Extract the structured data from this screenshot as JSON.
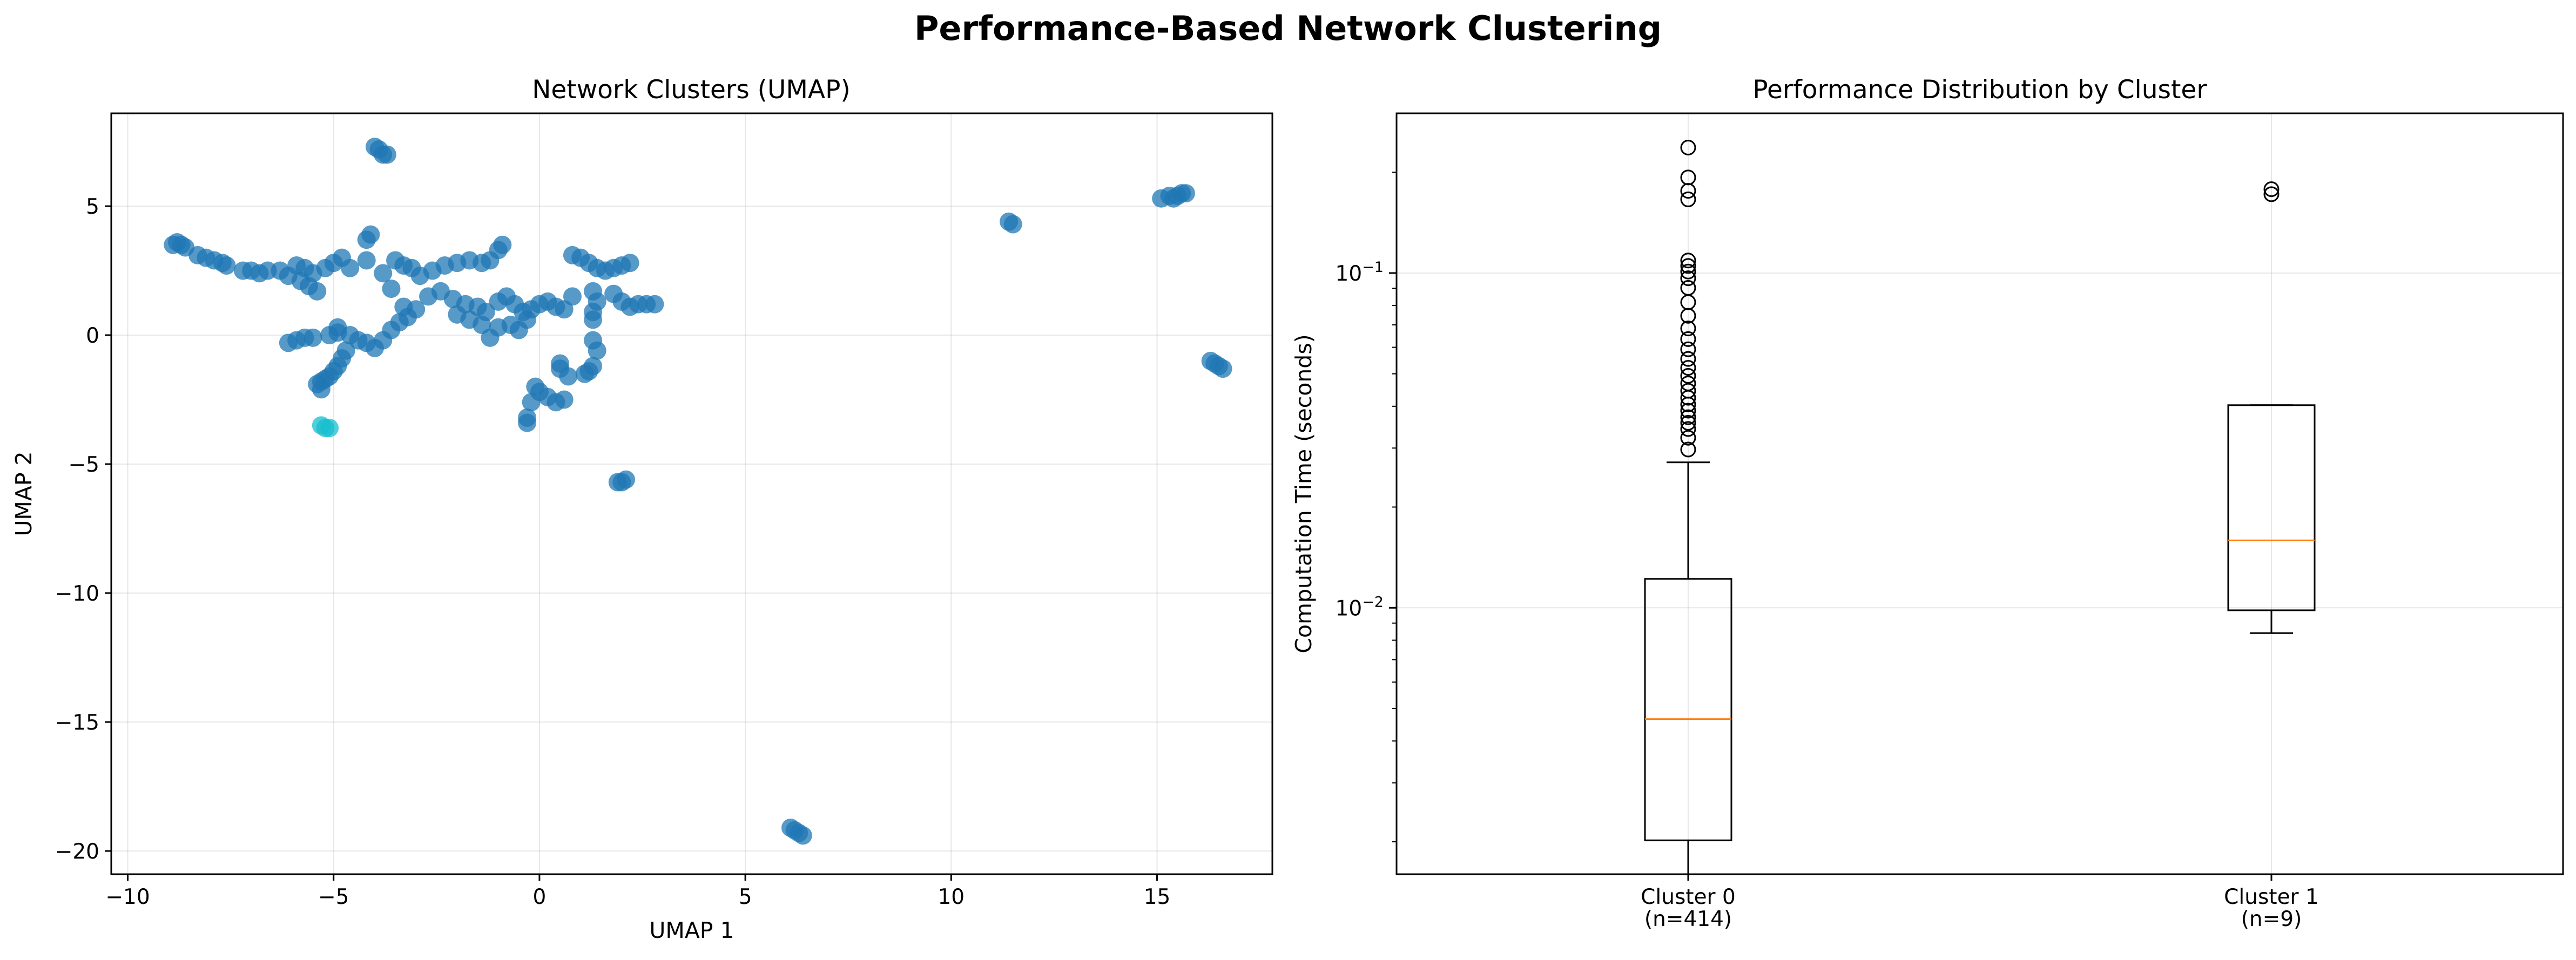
{
  "suptitle": "Performance-Based Network Clustering",
  "chart_data": [
    {
      "type": "scatter",
      "title": "Network Clusters (UMAP)",
      "xlabel": "UMAP 1",
      "ylabel": "UMAP 2",
      "xlim": [
        -10.4,
        17.8
      ],
      "ylim": [
        -20.9,
        8.6
      ],
      "xticks": [
        -10,
        -5,
        0,
        5,
        10,
        15
      ],
      "yticks": [
        -20,
        -15,
        -10,
        -5,
        0,
        5
      ],
      "grid": true,
      "colors": {
        "cluster_0": "#1f77b4",
        "cluster_1": "#17becf"
      },
      "series": [
        {
          "points": [
            [
              -8.9,
              3.5
            ],
            [
              -8.8,
              3.6
            ],
            [
              -8.7,
              3.5
            ],
            [
              -8.6,
              3.4
            ],
            [
              -8.3,
              3.1
            ],
            [
              -8.1,
              3.0
            ],
            [
              -7.9,
              2.9
            ],
            [
              -7.7,
              2.8
            ],
            [
              -7.6,
              2.7
            ],
            [
              -7.2,
              2.5
            ],
            [
              -7.0,
              2.5
            ],
            [
              -6.8,
              2.4
            ],
            [
              -6.6,
              2.5
            ],
            [
              -6.3,
              2.5
            ],
            [
              -6.1,
              2.3
            ],
            [
              -5.9,
              2.7
            ],
            [
              -5.7,
              2.6
            ],
            [
              -5.5,
              2.4
            ],
            [
              -5.8,
              2.1
            ],
            [
              -5.6,
              1.9
            ],
            [
              -5.4,
              1.7
            ],
            [
              -5.2,
              2.6
            ],
            [
              -5.0,
              2.8
            ],
            [
              -4.8,
              3.0
            ],
            [
              -4.6,
              2.6
            ],
            [
              -4.2,
              3.7
            ],
            [
              -4.1,
              3.9
            ],
            [
              -4.0,
              7.3
            ],
            [
              -3.9,
              7.2
            ],
            [
              -3.8,
              7.0
            ],
            [
              -3.7,
              7.0
            ],
            [
              -4.2,
              2.9
            ],
            [
              -3.8,
              2.4
            ],
            [
              -3.5,
              2.9
            ],
            [
              -3.3,
              2.7
            ],
            [
              -3.1,
              2.6
            ],
            [
              -2.9,
              2.3
            ],
            [
              -2.6,
              2.5
            ],
            [
              -2.3,
              2.7
            ],
            [
              -2.0,
              2.8
            ],
            [
              -1.7,
              2.9
            ],
            [
              -1.4,
              2.8
            ],
            [
              -1.2,
              2.9
            ],
            [
              -1.0,
              3.3
            ],
            [
              -0.9,
              3.5
            ],
            [
              -3.6,
              1.8
            ],
            [
              -3.3,
              1.1
            ],
            [
              -3.0,
              1.0
            ],
            [
              -2.7,
              1.5
            ],
            [
              -2.4,
              1.7
            ],
            [
              -2.1,
              1.4
            ],
            [
              -1.8,
              1.2
            ],
            [
              -1.5,
              1.1
            ],
            [
              -1.3,
              0.9
            ],
            [
              -1.0,
              1.3
            ],
            [
              -0.8,
              1.5
            ],
            [
              -0.6,
              1.2
            ],
            [
              -0.4,
              0.9
            ],
            [
              -0.2,
              1.0
            ],
            [
              0.0,
              1.2
            ],
            [
              0.2,
              1.3
            ],
            [
              0.4,
              1.1
            ],
            [
              0.6,
              1.0
            ],
            [
              0.8,
              1.5
            ],
            [
              0.8,
              3.1
            ],
            [
              1.0,
              3.0
            ],
            [
              1.2,
              2.8
            ],
            [
              1.4,
              2.6
            ],
            [
              1.6,
              2.5
            ],
            [
              1.8,
              2.6
            ],
            [
              2.0,
              2.7
            ],
            [
              2.2,
              2.8
            ],
            [
              1.8,
              1.6
            ],
            [
              2.0,
              1.3
            ],
            [
              2.2,
              1.1
            ],
            [
              2.4,
              1.2
            ],
            [
              2.6,
              1.2
            ],
            [
              2.8,
              1.2
            ],
            [
              1.3,
              1.7
            ],
            [
              1.4,
              1.3
            ],
            [
              1.3,
              0.9
            ],
            [
              1.3,
              0.6
            ],
            [
              1.3,
              -0.2
            ],
            [
              1.4,
              -0.6
            ],
            [
              1.3,
              -1.2
            ],
            [
              1.2,
              -1.4
            ],
            [
              1.1,
              -1.5
            ],
            [
              0.7,
              -1.6
            ],
            [
              0.5,
              -1.3
            ],
            [
              0.5,
              -1.1
            ],
            [
              0.6,
              -2.5
            ],
            [
              0.4,
              -2.6
            ],
            [
              0.2,
              -2.4
            ],
            [
              0.0,
              -2.2
            ],
            [
              -0.1,
              -2.0
            ],
            [
              -0.2,
              -2.6
            ],
            [
              -0.3,
              -3.2
            ],
            [
              -0.3,
              -3.4
            ],
            [
              -1.0,
              0.3
            ],
            [
              -1.2,
              -0.1
            ],
            [
              -1.4,
              0.4
            ],
            [
              -1.7,
              0.6
            ],
            [
              -2.0,
              0.8
            ],
            [
              -0.7,
              0.4
            ],
            [
              -0.5,
              0.2
            ],
            [
              -0.3,
              0.6
            ],
            [
              -6.1,
              -0.3
            ],
            [
              -5.9,
              -0.2
            ],
            [
              -5.7,
              -0.1
            ],
            [
              -5.5,
              -0.1
            ],
            [
              -4.9,
              0.1
            ],
            [
              -4.6,
              0.0
            ],
            [
              -4.4,
              -0.2
            ],
            [
              -4.2,
              -0.3
            ],
            [
              -4.0,
              -0.5
            ],
            [
              -3.8,
              -0.2
            ],
            [
              -3.6,
              0.2
            ],
            [
              -3.4,
              0.5
            ],
            [
              -3.2,
              0.7
            ],
            [
              -4.7,
              -0.6
            ],
            [
              -4.8,
              -0.9
            ],
            [
              -4.9,
              -1.2
            ],
            [
              -5.0,
              -1.4
            ],
            [
              -5.1,
              -1.6
            ],
            [
              -5.2,
              -1.7
            ],
            [
              -5.3,
              -1.8
            ],
            [
              -5.4,
              -1.9
            ],
            [
              -5.3,
              -2.1
            ],
            [
              -5.1,
              0.0
            ],
            [
              -4.9,
              0.3
            ],
            [
              11.4,
              4.4
            ],
            [
              11.5,
              4.3
            ],
            [
              15.1,
              5.3
            ],
            [
              15.3,
              5.4
            ],
            [
              15.5,
              5.4
            ],
            [
              15.6,
              5.5
            ],
            [
              15.7,
              5.5
            ],
            [
              15.4,
              5.3
            ],
            [
              16.3,
              -1.0
            ],
            [
              16.4,
              -1.1
            ],
            [
              16.5,
              -1.2
            ],
            [
              16.6,
              -1.3
            ],
            [
              1.9,
              -5.7
            ],
            [
              2.0,
              -5.7
            ],
            [
              2.1,
              -5.6
            ],
            [
              6.1,
              -19.1
            ],
            [
              6.2,
              -19.2
            ],
            [
              6.3,
              -19.3
            ],
            [
              6.4,
              -19.4
            ]
          ]
        },
        {
          "points": [
            [
              -5.2,
              -3.6
            ],
            [
              -5.1,
              -3.6
            ],
            [
              -5.3,
              -3.5
            ]
          ]
        }
      ]
    },
    {
      "type": "box",
      "title": "Performance Distribution by Cluster",
      "ylabel": "Computation Time (seconds)",
      "yscale": "log",
      "ylim": [
        0.0016,
        0.3
      ],
      "ytick_labels": [
        {
          "v": 0.01,
          "label": "10^{-2}"
        },
        {
          "v": 0.1,
          "label": "10^{-1}"
        }
      ],
      "grid": true,
      "categories": [
        "Cluster 0\n(n=414)",
        "Cluster 1\n(n=9)"
      ],
      "boxes": [
        {
          "q1": 0.00202,
          "median": 0.00465,
          "q3": 0.0122,
          "whisker_low": 0.0016,
          "whisker_high": 0.0272,
          "fliers": [
            0.0297,
            0.0322,
            0.0342,
            0.0357,
            0.0371,
            0.0388,
            0.0405,
            0.0424,
            0.0445,
            0.0468,
            0.0493,
            0.0521,
            0.0554,
            0.0592,
            0.0635,
            0.0683,
            0.0745,
            0.0818,
            0.0903,
            0.0965,
            0.101,
            0.105,
            0.109,
            0.166,
            0.176,
            0.193,
            0.237
          ]
        },
        {
          "q1": 0.00983,
          "median": 0.0159,
          "q3": 0.0403,
          "whisker_low": 0.0084,
          "whisker_high": 0.0403,
          "fliers": [
            0.172,
            0.178
          ]
        }
      ]
    }
  ]
}
